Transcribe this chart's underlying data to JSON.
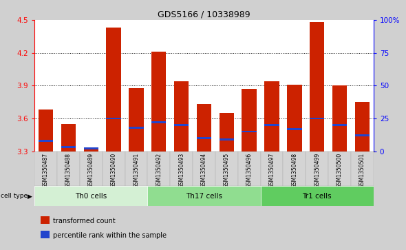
{
  "title": "GDS5166 / 10338989",
  "samples": [
    "GSM1350487",
    "GSM1350488",
    "GSM1350489",
    "GSM1350490",
    "GSM1350491",
    "GSM1350492",
    "GSM1350493",
    "GSM1350494",
    "GSM1350495",
    "GSM1350496",
    "GSM1350497",
    "GSM1350498",
    "GSM1350499",
    "GSM1350500",
    "GSM1350501"
  ],
  "transformed_count": [
    3.68,
    3.55,
    3.33,
    4.43,
    3.88,
    4.21,
    3.94,
    3.73,
    3.65,
    3.87,
    3.94,
    3.91,
    4.48,
    3.9,
    3.75
  ],
  "percentile_rank": [
    8,
    3,
    2,
    25,
    18,
    22,
    20,
    10,
    9,
    15,
    20,
    17,
    25,
    20,
    12
  ],
  "cell_groups": [
    {
      "label": "Th0 cells",
      "start": 0,
      "end": 5,
      "color": "#d4f0d4"
    },
    {
      "label": "Th17 cells",
      "start": 5,
      "end": 10,
      "color": "#90dd90"
    },
    {
      "label": "Tr1 cells",
      "start": 10,
      "end": 15,
      "color": "#60cc60"
    }
  ],
  "ylim_left": [
    3.3,
    4.5
  ],
  "ylim_right": [
    0,
    100
  ],
  "yticks_left": [
    3.3,
    3.6,
    3.9,
    4.2,
    4.5
  ],
  "ytick_labels_left": [
    "3.3",
    "3.6",
    "3.9",
    "4.2",
    "4.5"
  ],
  "yticks_right": [
    0,
    25,
    50,
    75,
    100
  ],
  "ytick_labels_right": [
    "0",
    "25",
    "50",
    "75",
    "100%"
  ],
  "bar_color": "#cc2200",
  "percentile_color": "#2244cc",
  "bar_width": 0.65,
  "background_color": "#d0d0d0",
  "plot_bg_color": "#ffffff",
  "legend_items": [
    {
      "label": "transformed count",
      "color": "#cc2200"
    },
    {
      "label": "percentile rank within the sample",
      "color": "#2244cc"
    }
  ]
}
